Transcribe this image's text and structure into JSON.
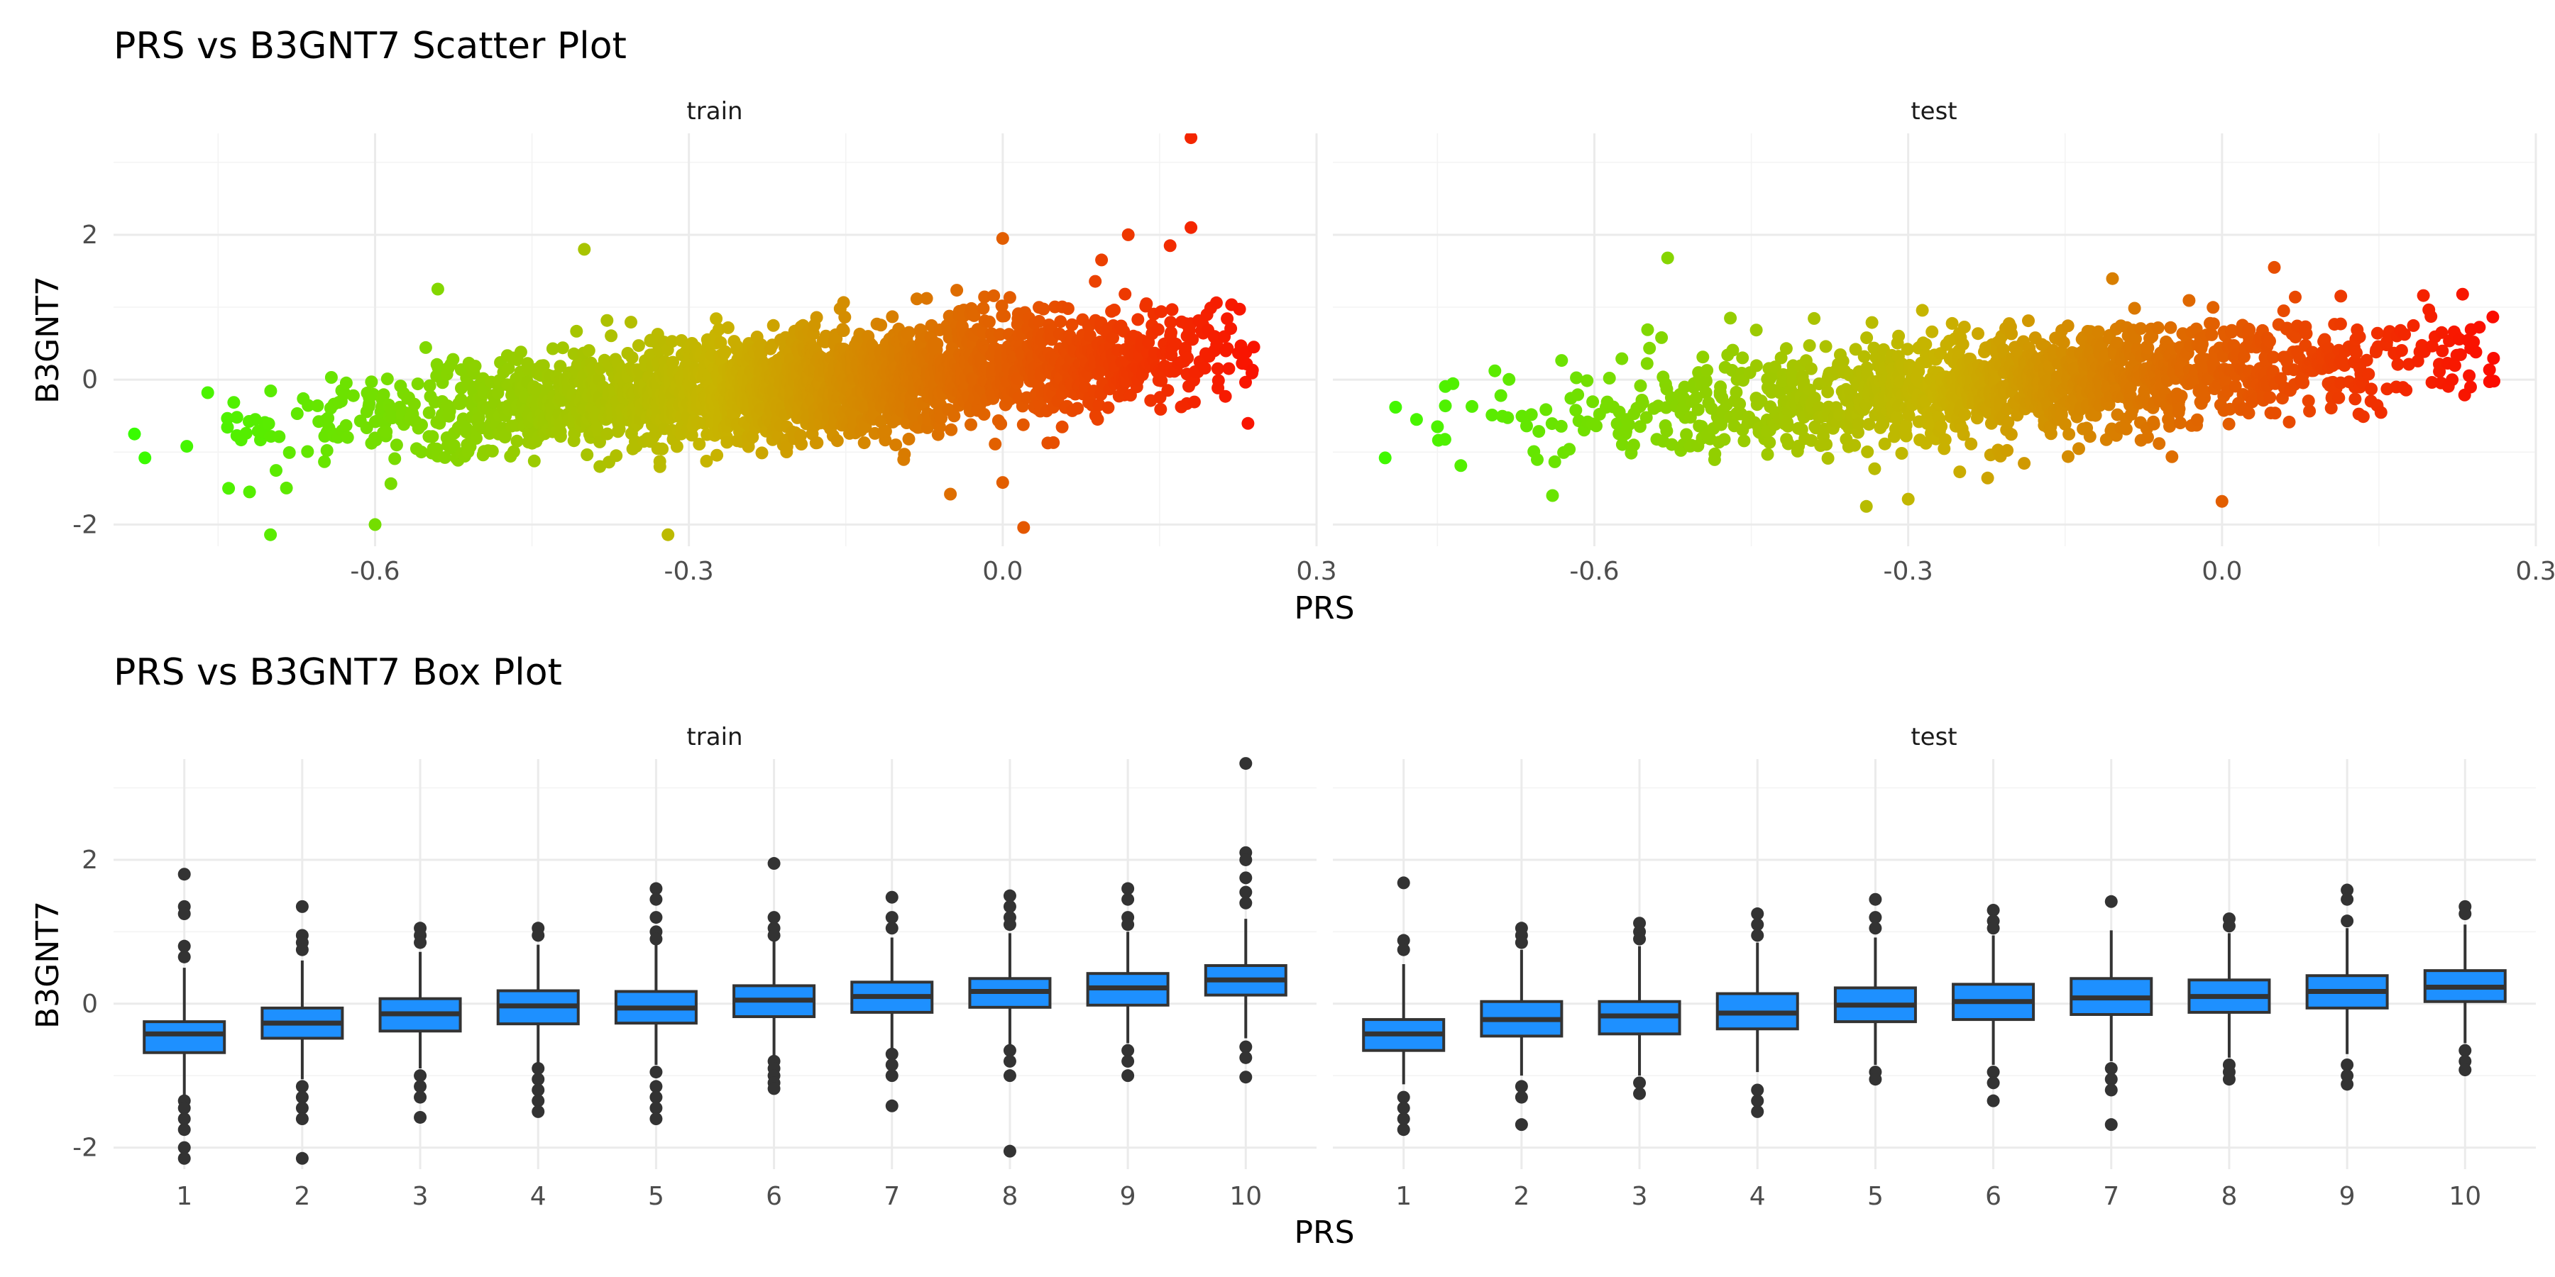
{
  "colors": {
    "scatter_low": "#33ff00",
    "scatter_mid": "#c8b400",
    "scatter_high": "#ff0000",
    "box_fill": "#1e90ff",
    "box_line": "#333333",
    "outlier": "#333333",
    "grid": "#ebebeb"
  },
  "chart_data": [
    {
      "type": "scatter",
      "title": "PRS vs B3GNT7 Scatter Plot",
      "xlabel": "PRS",
      "ylabel": "B3GNT7",
      "xlim": [
        -0.85,
        0.3
      ],
      "ylim": [
        -2.3,
        3.4
      ],
      "x_ticks": [
        -0.6,
        -0.3,
        0.0,
        0.3
      ],
      "x_tick_labels": [
        "-0.6",
        "-0.3",
        "0.0",
        "0.3"
      ],
      "y_ticks": [
        -2,
        0,
        2
      ],
      "y_tick_labels": [
        "-2",
        "0",
        "2"
      ],
      "color_mapping": "point color follows PRS: green (low) to orange to red (high)",
      "grid": true,
      "legend": "none",
      "panels": [
        {
          "name": "train",
          "trend": {
            "slope": 1.15,
            "intercept": 0.17,
            "x_range": [
              -0.8,
              0.24
            ]
          },
          "points": [
            {
              "x": -0.83,
              "y": -0.75
            },
            {
              "x": -0.82,
              "y": -1.08
            },
            {
              "x": -0.7,
              "y": -2.14
            },
            {
              "x": -0.4,
              "y": 1.8
            },
            {
              "x": -0.54,
              "y": 1.25
            },
            {
              "x": -0.32,
              "y": -2.14
            },
            {
              "x": 0.18,
              "y": 3.34
            },
            {
              "x": 0.18,
              "y": 2.1
            },
            {
              "x": 0.12,
              "y": 2.0
            },
            {
              "x": 0.16,
              "y": 1.85
            },
            {
              "x": 0.0,
              "y": 1.95
            },
            {
              "x": 0.02,
              "y": -2.04
            },
            {
              "x": -0.6,
              "y": -2.0
            },
            {
              "x": -0.78,
              "y": -0.92
            },
            {
              "x": -0.74,
              "y": -1.5
            },
            {
              "x": -0.76,
              "y": -0.18
            },
            {
              "x": -0.72,
              "y": -1.55
            },
            {
              "x": -0.05,
              "y": -1.58
            },
            {
              "x": 0.0,
              "y": -1.42
            },
            {
              "x": 0.24,
              "y": 0.45
            }
          ]
        },
        {
          "name": "test",
          "trend": {
            "slope": 1.0,
            "intercept": 0.14,
            "x_range": [
              -0.8,
              0.26
            ]
          },
          "points": [
            {
              "x": -0.8,
              "y": -1.08
            },
            {
              "x": -0.79,
              "y": -0.38
            },
            {
              "x": -0.77,
              "y": -0.55
            },
            {
              "x": -0.75,
              "y": -0.65
            },
            {
              "x": -0.53,
              "y": 1.68
            },
            {
              "x": 0.26,
              "y": -0.02
            },
            {
              "x": 0.23,
              "y": 1.18
            },
            {
              "x": 0.21,
              "y": 0.65
            },
            {
              "x": 0.0,
              "y": -1.68
            },
            {
              "x": -0.3,
              "y": -1.65
            },
            {
              "x": -0.34,
              "y": -1.75
            },
            {
              "x": -0.64,
              "y": -1.6
            },
            {
              "x": 0.05,
              "y": 1.55
            },
            {
              "x": -0.47,
              "y": 0.85
            },
            {
              "x": 0.22,
              "y": 0.0
            }
          ]
        }
      ]
    },
    {
      "type": "box",
      "title": "PRS vs B3GNT7 Box Plot",
      "xlabel": "PRS",
      "ylabel": "B3GNT7",
      "categories": [
        "1",
        "2",
        "3",
        "4",
        "5",
        "6",
        "7",
        "8",
        "9",
        "10"
      ],
      "ylim": [
        -2.3,
        3.4
      ],
      "y_ticks": [
        -2,
        0,
        2
      ],
      "y_tick_labels": [
        "-2",
        "0",
        "2"
      ],
      "grid": true,
      "legend": "none",
      "panels": [
        {
          "name": "train",
          "boxes": [
            {
              "category": "1",
              "lower_whisker": -1.28,
              "q1": -0.68,
              "median": -0.42,
              "q3": -0.25,
              "upper_whisker": 0.5,
              "outliers": [
                1.8,
                1.35,
                1.25,
                0.8,
                0.65,
                -1.35,
                -1.45,
                -1.6,
                -1.75,
                -2.0,
                -2.15
              ]
            },
            {
              "category": "2",
              "lower_whisker": -1.05,
              "q1": -0.48,
              "median": -0.27,
              "q3": -0.06,
              "upper_whisker": 0.6,
              "outliers": [
                1.35,
                0.95,
                0.85,
                0.75,
                -1.15,
                -1.3,
                -1.45,
                -1.6,
                -2.15
              ]
            },
            {
              "category": "3",
              "lower_whisker": -0.9,
              "q1": -0.38,
              "median": -0.14,
              "q3": 0.07,
              "upper_whisker": 0.72,
              "outliers": [
                1.05,
                0.95,
                0.85,
                -1.0,
                -1.15,
                -1.3,
                -1.58
              ]
            },
            {
              "category": "4",
              "lower_whisker": -0.82,
              "q1": -0.28,
              "median": -0.03,
              "q3": 0.18,
              "upper_whisker": 0.82,
              "outliers": [
                1.05,
                0.95,
                -0.9,
                -1.05,
                -1.2,
                -1.35,
                -1.5
              ]
            },
            {
              "category": "5",
              "lower_whisker": -0.85,
              "q1": -0.27,
              "median": -0.06,
              "q3": 0.17,
              "upper_whisker": 0.82,
              "outliers": [
                1.6,
                1.45,
                1.2,
                1.0,
                0.9,
                -0.95,
                -1.15,
                -1.3,
                -1.45,
                -1.6
              ]
            },
            {
              "category": "6",
              "lower_whisker": -0.72,
              "q1": -0.18,
              "median": 0.05,
              "q3": 0.25,
              "upper_whisker": 0.9,
              "outliers": [
                1.95,
                1.2,
                1.05,
                0.95,
                -0.8,
                -0.9,
                -1.0,
                -1.1,
                -1.18
              ]
            },
            {
              "category": "7",
              "lower_whisker": -0.62,
              "q1": -0.12,
              "median": 0.1,
              "q3": 0.3,
              "upper_whisker": 0.92,
              "outliers": [
                1.48,
                1.2,
                1.05,
                -0.7,
                -0.85,
                -1.0,
                -1.42
              ]
            },
            {
              "category": "8",
              "lower_whisker": -0.58,
              "q1": -0.05,
              "median": 0.17,
              "q3": 0.35,
              "upper_whisker": 0.98,
              "outliers": [
                1.5,
                1.35,
                1.2,
                1.1,
                -0.65,
                -0.8,
                -1.0,
                -2.05
              ]
            },
            {
              "category": "9",
              "lower_whisker": -0.55,
              "q1": -0.02,
              "median": 0.22,
              "q3": 0.42,
              "upper_whisker": 1.0,
              "outliers": [
                1.6,
                1.45,
                1.2,
                1.1,
                -0.65,
                -0.8,
                -1.0
              ]
            },
            {
              "category": "10",
              "lower_whisker": -0.48,
              "q1": 0.12,
              "median": 0.33,
              "q3": 0.53,
              "upper_whisker": 1.18,
              "outliers": [
                3.34,
                2.1,
                2.0,
                1.75,
                1.55,
                1.4,
                -0.6,
                -0.75,
                -1.02
              ]
            }
          ]
        },
        {
          "name": "test",
          "boxes": [
            {
              "category": "1",
              "lower_whisker": -1.12,
              "q1": -0.65,
              "median": -0.42,
              "q3": -0.22,
              "upper_whisker": 0.55,
              "outliers": [
                1.68,
                0.88,
                0.75,
                -1.3,
                -1.45,
                -1.6,
                -1.75
              ]
            },
            {
              "category": "2",
              "lower_whisker": -1.0,
              "q1": -0.45,
              "median": -0.22,
              "q3": 0.03,
              "upper_whisker": 0.75,
              "outliers": [
                1.05,
                0.95,
                0.85,
                -1.15,
                -1.3,
                -1.68
              ]
            },
            {
              "category": "3",
              "lower_whisker": -1.0,
              "q1": -0.42,
              "median": -0.17,
              "q3": 0.03,
              "upper_whisker": 0.8,
              "outliers": [
                1.12,
                1.0,
                0.9,
                -1.1,
                -1.25
              ]
            },
            {
              "category": "4",
              "lower_whisker": -0.95,
              "q1": -0.35,
              "median": -0.13,
              "q3": 0.14,
              "upper_whisker": 0.85,
              "outliers": [
                1.25,
                1.1,
                0.95,
                -1.2,
                -1.35,
                -1.5
              ]
            },
            {
              "category": "5",
              "lower_whisker": -0.85,
              "q1": -0.25,
              "median": -0.02,
              "q3": 0.22,
              "upper_whisker": 0.92,
              "outliers": [
                1.45,
                1.2,
                1.05,
                -0.95,
                -1.05
              ]
            },
            {
              "category": "6",
              "lower_whisker": -0.85,
              "q1": -0.22,
              "median": 0.03,
              "q3": 0.27,
              "upper_whisker": 0.95,
              "outliers": [
                1.3,
                1.15,
                1.05,
                -0.95,
                -1.1,
                -1.35
              ]
            },
            {
              "category": "7",
              "lower_whisker": -0.8,
              "q1": -0.15,
              "median": 0.08,
              "q3": 0.35,
              "upper_whisker": 1.02,
              "outliers": [
                1.42,
                -0.9,
                -1.05,
                -1.2,
                -1.68
              ]
            },
            {
              "category": "8",
              "lower_whisker": -0.75,
              "q1": -0.12,
              "median": 0.1,
              "q3": 0.33,
              "upper_whisker": 0.98,
              "outliers": [
                1.18,
                1.08,
                -0.85,
                -0.95,
                -1.05
              ]
            },
            {
              "category": "9",
              "lower_whisker": -0.7,
              "q1": -0.06,
              "median": 0.17,
              "q3": 0.39,
              "upper_whisker": 1.05,
              "outliers": [
                1.58,
                1.45,
                1.15,
                -0.85,
                -1.0,
                -1.12
              ]
            },
            {
              "category": "10",
              "lower_whisker": -0.55,
              "q1": 0.03,
              "median": 0.23,
              "q3": 0.46,
              "upper_whisker": 1.1,
              "outliers": [
                1.35,
                1.25,
                -0.65,
                -0.8,
                -0.92
              ]
            }
          ]
        }
      ]
    }
  ]
}
